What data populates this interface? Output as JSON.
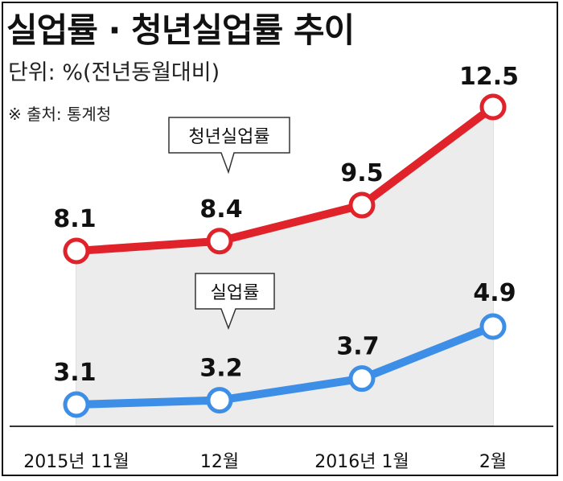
{
  "header": {
    "title": "실업률 · 청년실업률 추이",
    "unit": "단위: %(전년동월대비)",
    "source": "※ 출처: 통계청"
  },
  "chart_data": {
    "type": "line",
    "title": "실업률 · 청년실업률 추이",
    "categories": [
      "2015년 11월",
      "12월",
      "2016년 1월",
      "2월"
    ],
    "series": [
      {
        "name": "청년실업률",
        "values": [
          8.1,
          8.4,
          9.5,
          12.5
        ],
        "color": "#e0232b"
      },
      {
        "name": "실업률",
        "values": [
          3.1,
          3.2,
          3.7,
          4.9
        ],
        "color": "#3d8ee6"
      }
    ],
    "legend_placement": "callout labels on lines",
    "grid": false,
    "fill_between": "#ececec"
  }
}
